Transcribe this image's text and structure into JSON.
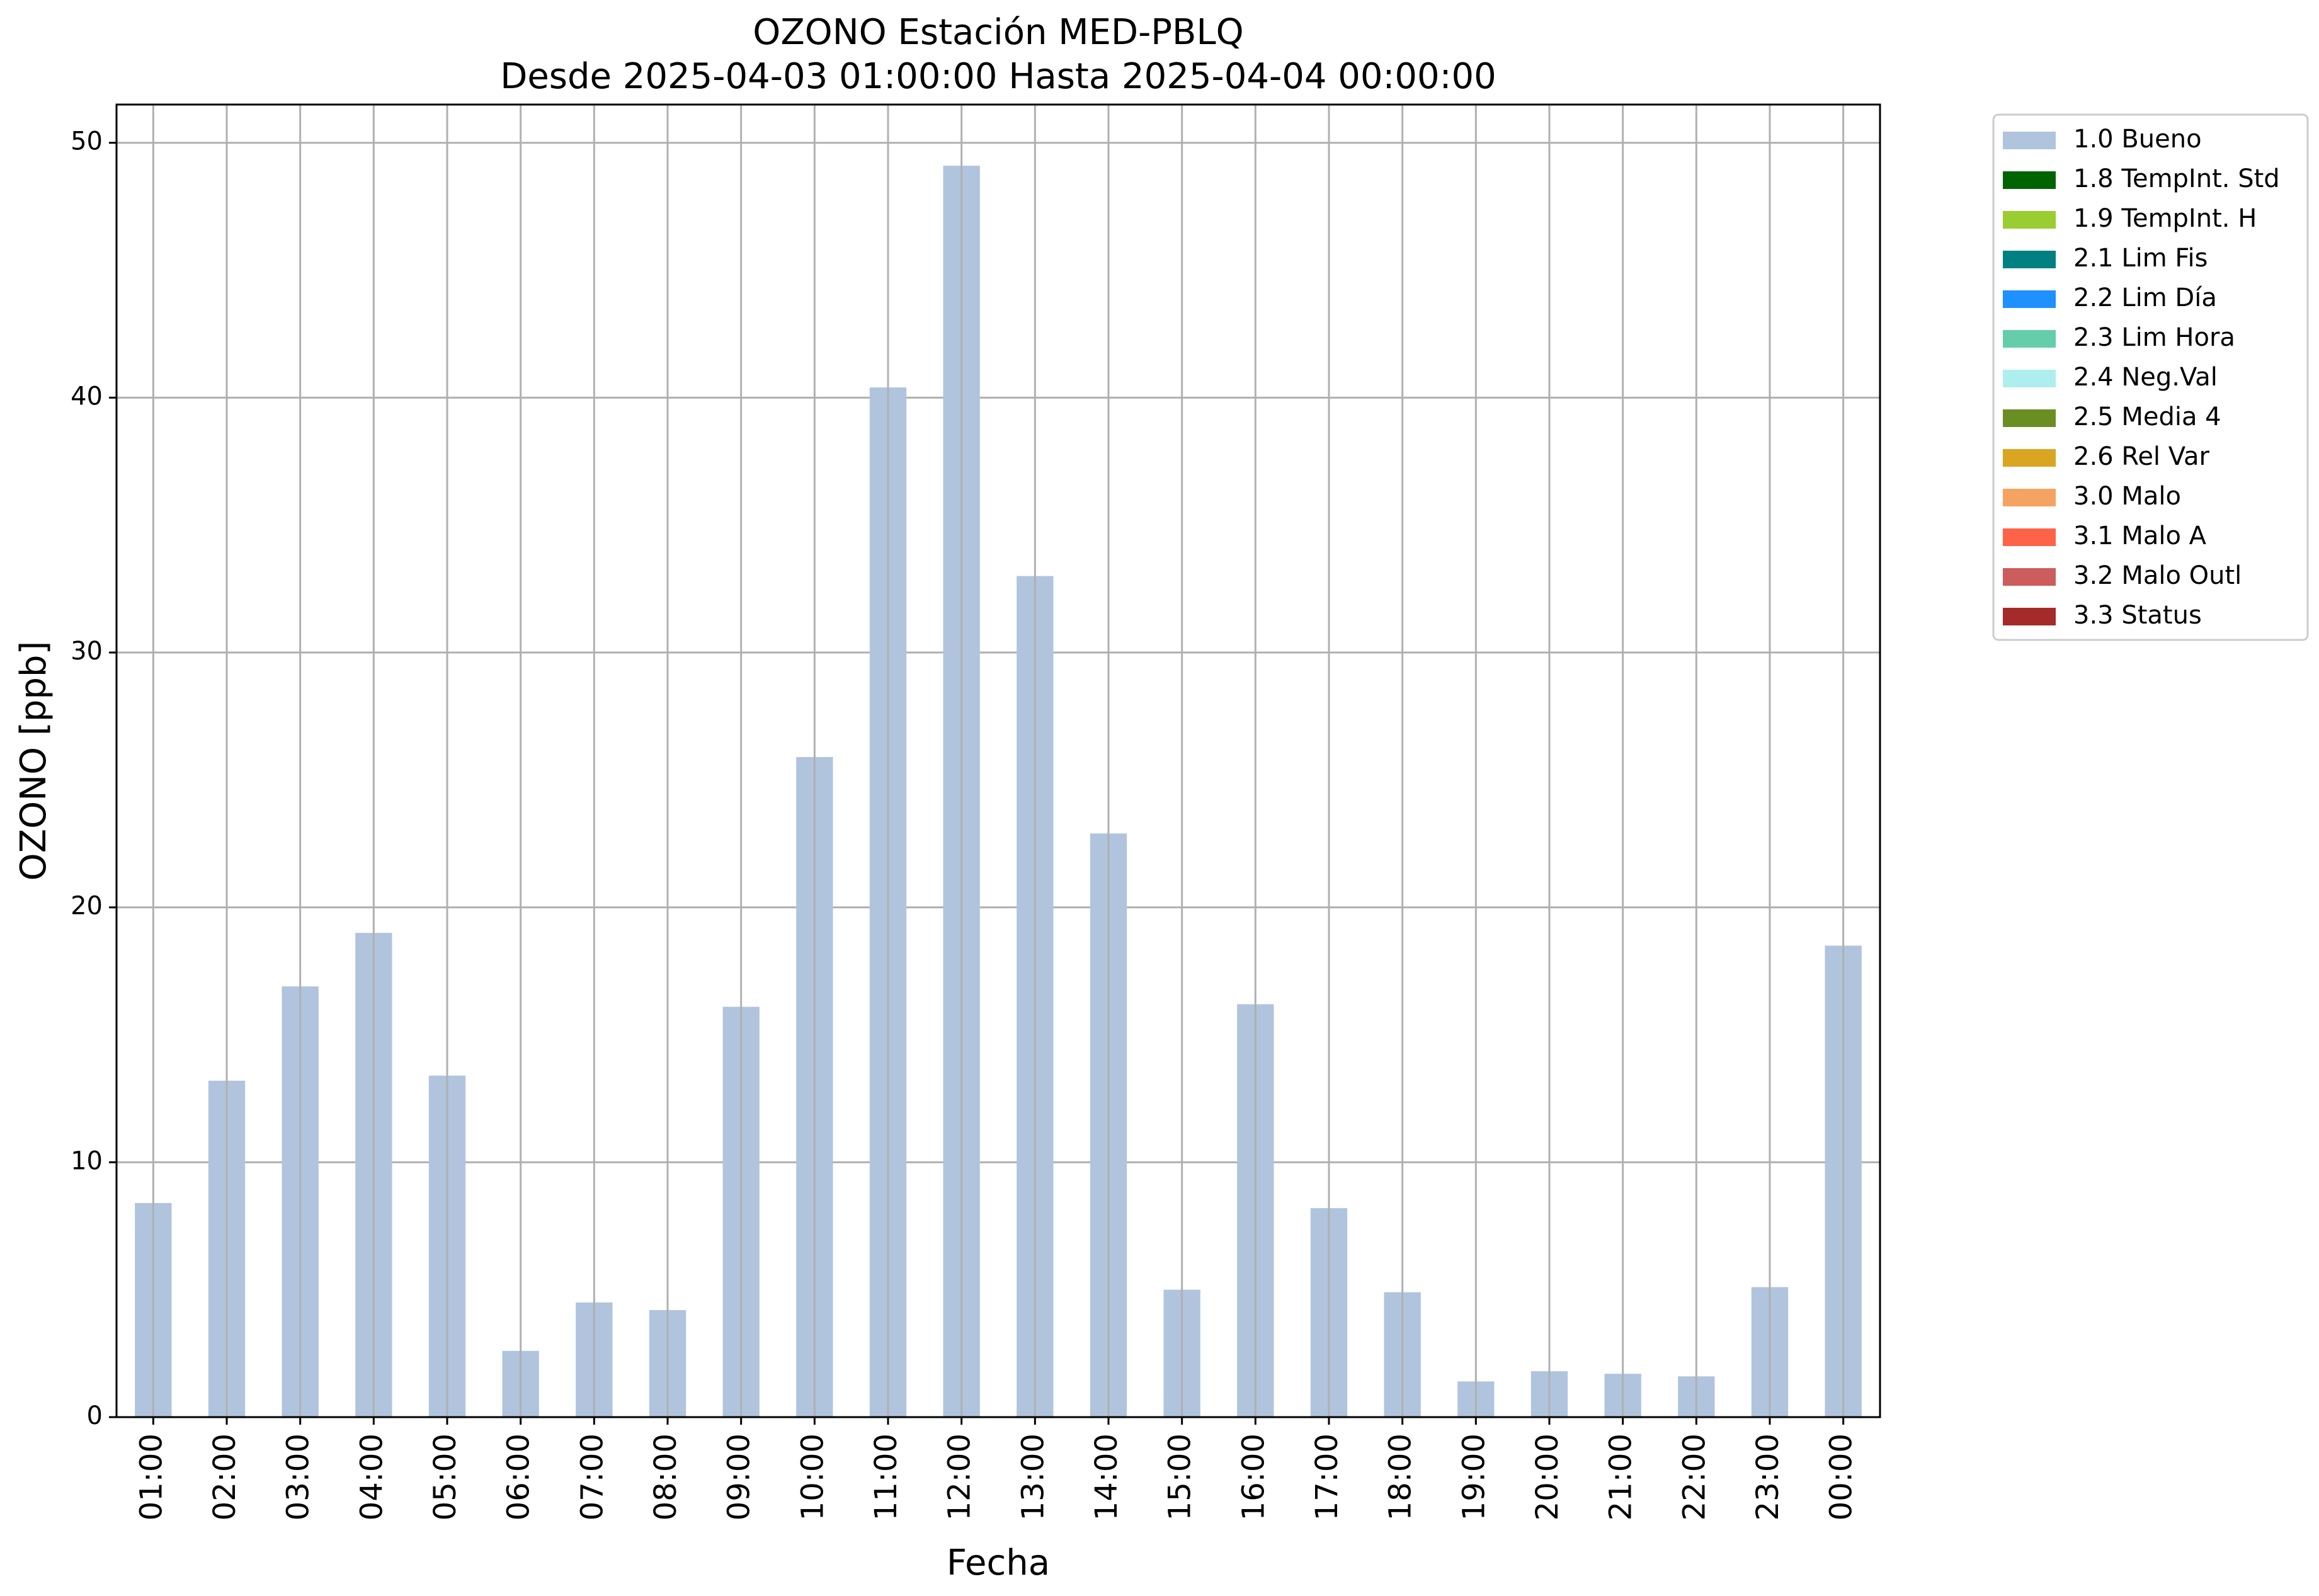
{
  "chart_data": {
    "type": "bar",
    "title": [
      "OZONO Estación MED-PBLQ",
      "Desde 2025-04-03 01:00:00 Hasta 2025-04-04 00:00:00"
    ],
    "xlabel": "Fecha",
    "ylabel": "OZONO [ppb]",
    "ylim": [
      0,
      51.5
    ],
    "yticks": [
      0,
      10,
      20,
      30,
      40,
      50
    ],
    "grid": true,
    "legend_position": "outside-top-right",
    "categories": [
      "01:00",
      "02:00",
      "03:00",
      "04:00",
      "05:00",
      "06:00",
      "07:00",
      "08:00",
      "09:00",
      "10:00",
      "11:00",
      "12:00",
      "13:00",
      "14:00",
      "15:00",
      "16:00",
      "17:00",
      "18:00",
      "19:00",
      "20:00",
      "21:00",
      "22:00",
      "23:00",
      "00:00"
    ],
    "series": [
      {
        "name": "1.0 Bueno",
        "color": "#b0c4de",
        "values": [
          8.4,
          13.2,
          16.9,
          19.0,
          13.4,
          2.6,
          4.5,
          4.2,
          16.1,
          25.9,
          40.4,
          49.1,
          33.0,
          22.9,
          5.0,
          16.2,
          8.2,
          4.9,
          1.4,
          1.8,
          1.7,
          1.6,
          5.1,
          18.5
        ]
      }
    ],
    "legend": [
      {
        "label": "1.0 Bueno",
        "color": "#b0c4de"
      },
      {
        "label": "1.8 TempInt. Std",
        "color": "#006400"
      },
      {
        "label": "1.9 TempInt. H",
        "color": "#9acd32"
      },
      {
        "label": "2.1 Lim Fis",
        "color": "#008080"
      },
      {
        "label": "2.2 Lim Día",
        "color": "#1e90ff"
      },
      {
        "label": "2.3 Lim Hora",
        "color": "#66cdaa"
      },
      {
        "label": "2.4 Neg.Val",
        "color": "#afeeee"
      },
      {
        "label": "2.5 Media 4",
        "color": "#6b8e23"
      },
      {
        "label": "2.6 Rel Var",
        "color": "#daa520"
      },
      {
        "label": "3.0 Malo",
        "color": "#f4a460"
      },
      {
        "label": "3.1 Malo A",
        "color": "#ff6347"
      },
      {
        "label": "3.2 Malo Outl",
        "color": "#cd5c5c"
      },
      {
        "label": "3.3 Status",
        "color": "#a52a2a"
      }
    ]
  }
}
